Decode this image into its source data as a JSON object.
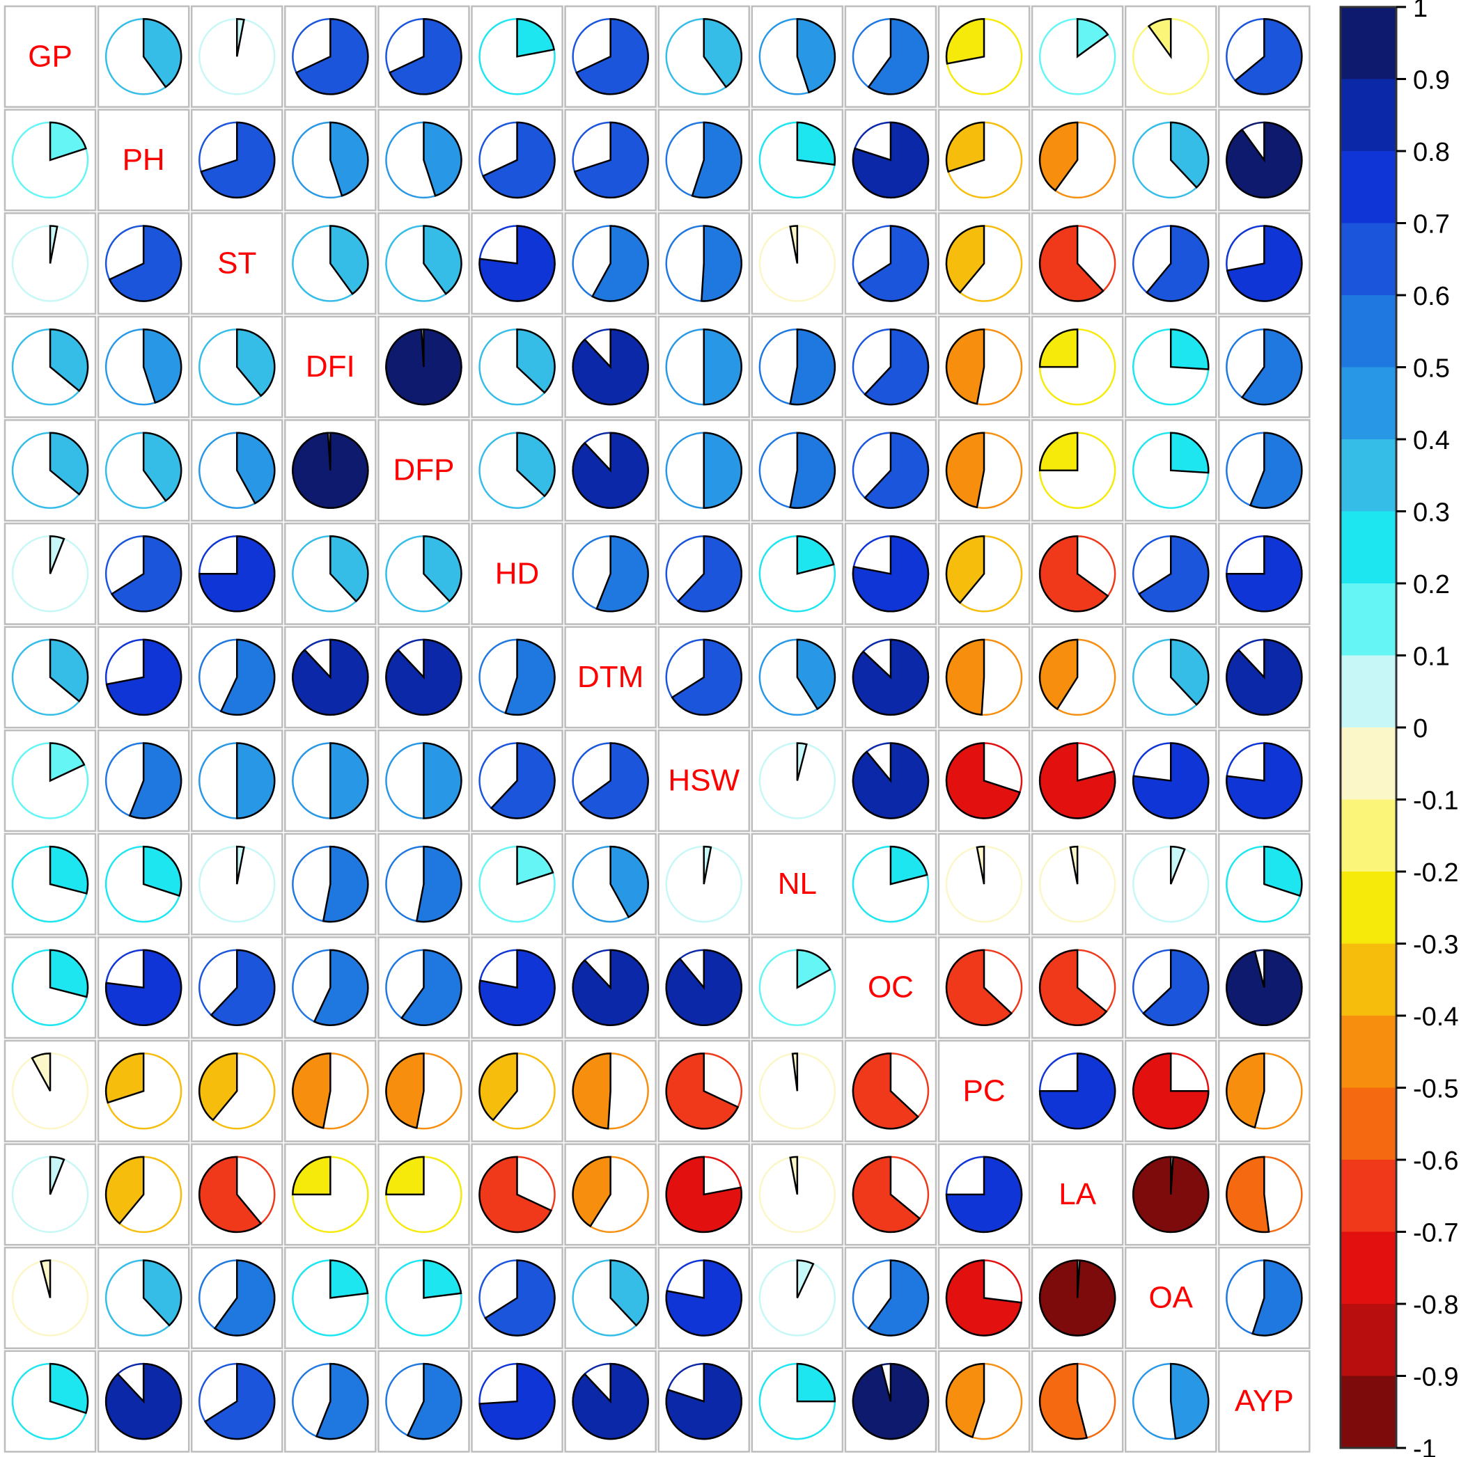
{
  "chart_data": {
    "type": "heatmap",
    "subtype": "correlation-matrix-pie",
    "title": "",
    "xlabel": "",
    "ylabel": "",
    "variables": [
      "GP",
      "PH",
      "ST",
      "DFI",
      "DFP",
      "HD",
      "DTM",
      "HSW",
      "NL",
      "OC",
      "PC",
      "LA",
      "OA",
      "AYP"
    ],
    "matrix": [
      [
        1,
        0.4,
        0.03,
        0.68,
        0.68,
        0.22,
        0.68,
        0.4,
        0.45,
        0.6,
        -0.28,
        0.15,
        -0.1,
        0.64
      ],
      [
        0.2,
        1,
        0.7,
        0.45,
        0.45,
        0.68,
        0.7,
        0.55,
        0.27,
        0.8,
        -0.3,
        -0.4,
        0.38,
        0.9
      ],
      [
        0.03,
        0.68,
        1,
        0.4,
        0.4,
        0.77,
        0.58,
        0.51,
        -0.03,
        0.66,
        -0.39,
        -0.62,
        0.61,
        0.72
      ],
      [
        0.36,
        0.45,
        0.39,
        1,
        0.99,
        0.37,
        0.88,
        0.5,
        0.53,
        0.62,
        -0.47,
        -0.25,
        0.26,
        0.6
      ],
      [
        0.36,
        0.4,
        0.42,
        0.99,
        1,
        0.37,
        0.88,
        0.5,
        0.53,
        0.62,
        -0.47,
        -0.25,
        0.26,
        0.56
      ],
      [
        0.06,
        0.66,
        0.75,
        0.38,
        0.38,
        1,
        0.56,
        0.62,
        0.21,
        0.78,
        -0.39,
        -0.65,
        0.66,
        0.75
      ],
      [
        0.36,
        0.72,
        0.57,
        0.88,
        0.88,
        0.55,
        1,
        0.66,
        0.41,
        0.87,
        -0.49,
        -0.41,
        0.38,
        0.88
      ],
      [
        0.18,
        0.56,
        0.5,
        0.5,
        0.5,
        0.62,
        0.65,
        1,
        0.04,
        0.89,
        -0.7,
        -0.79,
        0.77,
        0.77
      ],
      [
        0.29,
        0.3,
        0.03,
        0.53,
        0.53,
        0.2,
        0.42,
        0.03,
        1,
        0.21,
        -0.03,
        -0.03,
        0.06,
        0.3
      ],
      [
        0.29,
        0.77,
        0.62,
        0.57,
        0.6,
        0.78,
        0.88,
        0.89,
        0.17,
        1,
        -0.63,
        -0.64,
        0.63,
        0.96
      ],
      [
        -0.08,
        -0.3,
        -0.39,
        -0.47,
        -0.47,
        -0.39,
        -0.49,
        -0.68,
        -0.02,
        -0.63,
        1,
        0.75,
        -0.75,
        -0.46
      ],
      [
        0.06,
        -0.39,
        -0.61,
        -0.25,
        -0.25,
        -0.68,
        -0.41,
        -0.78,
        -0.03,
        -0.64,
        0.75,
        1,
        -0.99,
        -0.52
      ],
      [
        -0.04,
        0.38,
        0.6,
        0.23,
        0.23,
        0.66,
        0.38,
        0.78,
        0.07,
        0.6,
        -0.73,
        -0.99,
        1,
        0.55
      ],
      [
        0.3,
        0.88,
        0.66,
        0.56,
        0.57,
        0.74,
        0.88,
        0.8,
        0.25,
        0.96,
        -0.45,
        -0.54,
        0.48,
        1
      ]
    ],
    "colorbar": {
      "min": -1,
      "max": 1,
      "ticks": [
        "1",
        "0.9",
        "0.8",
        "0.7",
        "0.6",
        "0.5",
        "0.4",
        "0.3",
        "0.2",
        "0.1",
        "0",
        "-0.1",
        "-0.2",
        "-0.3",
        "-0.4",
        "-0.5",
        "-0.6",
        "-0.7",
        "-0.8",
        "-0.9",
        "-1"
      ],
      "colors_top_to_bottom": [
        "#0d1a6e",
        "#0a28a8",
        "#1035d6",
        "#1a55dc",
        "#1f78e0",
        "#2898e6",
        "#35bde8",
        "#1ee6f0",
        "#66f5f5",
        "#c8f7f7",
        "#fbf7c8",
        "#fbf57a",
        "#f5ea0a",
        "#f7bd0c",
        "#f78e0d",
        "#f56a10",
        "#f0381a",
        "#e31010",
        "#b80e0e",
        "#7e0b0b"
      ]
    },
    "label_color": "#ff0000",
    "grid": true
  }
}
